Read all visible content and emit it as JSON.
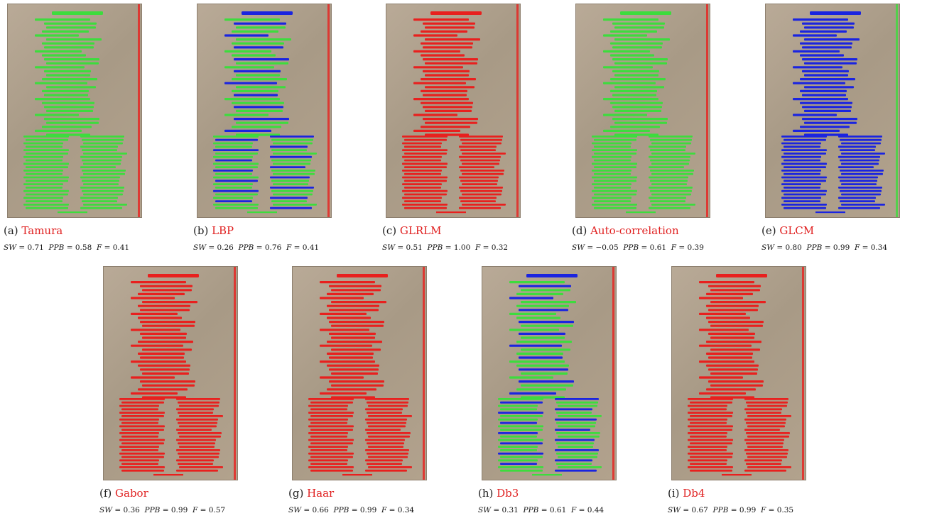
{
  "panels": [
    {
      "label": "(a)",
      "method": "Tamura",
      "sw": "0.71",
      "ppb": "0.58",
      "f": "0.41",
      "scheme": "green"
    },
    {
      "label": "(b)",
      "method": "LBP",
      "sw": "0.26",
      "ppb": "0.76",
      "f": "0.41",
      "scheme": "mixed"
    },
    {
      "label": "(c)",
      "method": "GLRLM",
      "sw": "0.51",
      "ppb": "1.00",
      "f": "0.32",
      "scheme": "red"
    },
    {
      "label": "(d)",
      "method": "Auto-correlation",
      "sw": "−0.05",
      "ppb": "0.61",
      "f": "0.39",
      "scheme": "green"
    },
    {
      "label": "(e)",
      "method": "GLCM",
      "sw": "0.80",
      "ppb": "0.99",
      "f": "0.34",
      "scheme": "blue"
    },
    {
      "label": "(f)",
      "method": "Gabor",
      "sw": "0.36",
      "ppb": "0.99",
      "f": "0.57",
      "scheme": "red"
    },
    {
      "label": "(g)",
      "method": "Haar",
      "sw": "0.66",
      "ppb": "0.99",
      "f": "0.34",
      "scheme": "red"
    },
    {
      "label": "(h)",
      "method": "Db3",
      "sw": "0.31",
      "ppb": "0.61",
      "f": "0.44",
      "scheme": "mixed"
    },
    {
      "label": "(i)",
      "method": "Db4",
      "sw": "0.67",
      "ppb": "0.99",
      "f": "0.35",
      "scheme": "red"
    }
  ],
  "colors": {
    "red": "#e8201e",
    "green": "#3ddc3d",
    "blue": "#1a24e0"
  },
  "metric_labels": {
    "sw": "SW",
    "ppb": "PPB",
    "f": "F",
    "eq": " = "
  }
}
